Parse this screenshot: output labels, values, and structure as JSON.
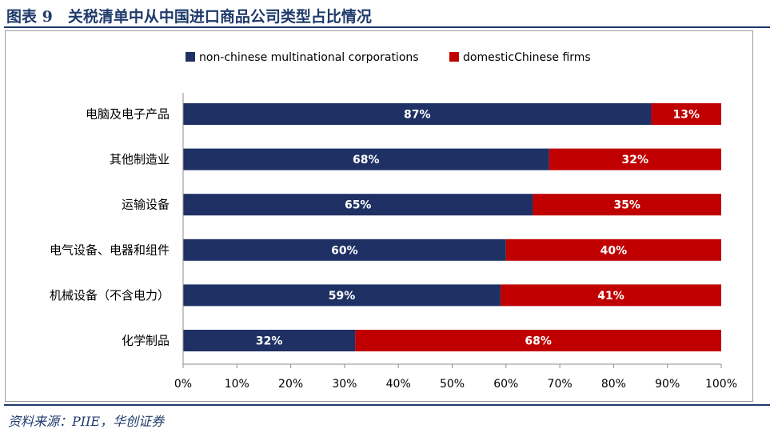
{
  "header": {
    "title": "图表 9　关税清单中从中国进口商品公司类型占比情况"
  },
  "footer": {
    "source": "资料来源：PIIE，华创证券"
  },
  "colors": {
    "series_0": "#1f3164",
    "series_1": "#c00000",
    "frame_rule": "#1f3a6b"
  },
  "chart_data": {
    "type": "bar",
    "orientation": "horizontal",
    "stacked": true,
    "title": "",
    "xlabel": "",
    "ylabel": "",
    "categories": [
      "电脑及电子产品",
      "其他制造业",
      "运输设备",
      "电气设备、电器和组件",
      "机械设备（不含电力）",
      "化学制品"
    ],
    "series": [
      {
        "name": "non-chinese multinational corporations",
        "values": [
          87,
          68,
          65,
          60,
          59,
          32
        ],
        "labels": [
          "87%",
          "68%",
          "65%",
          "60%",
          "59%",
          "32%"
        ]
      },
      {
        "name": "domesticChinese firms",
        "values": [
          13,
          32,
          35,
          40,
          41,
          68
        ],
        "labels": [
          "13%",
          "32%",
          "35%",
          "40%",
          "41%",
          "68%"
        ]
      }
    ],
    "xlim": [
      0,
      100
    ],
    "xticks": [
      "0%",
      "10%",
      "20%",
      "30%",
      "40%",
      "50%",
      "60%",
      "70%",
      "80%",
      "90%",
      "100%"
    ],
    "grid": false,
    "legend_position": "top"
  }
}
